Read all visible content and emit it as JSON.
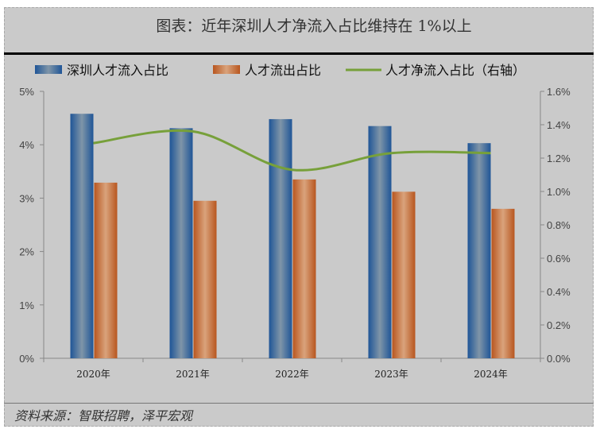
{
  "title": "图表：近年深圳人才净流入占比维持在 1%以上",
  "source": "资料来源：智联招聘，泽平宏观",
  "chart_data": {
    "type": "bar",
    "categories": [
      "2020年",
      "2021年",
      "2022年",
      "2023年",
      "2024年"
    ],
    "series": [
      {
        "name": "深圳人才流入占比",
        "type": "bar",
        "axis": "left",
        "color": "#2e64a0",
        "values": [
          4.58,
          4.31,
          4.48,
          4.35,
          4.03
        ]
      },
      {
        "name": "人才流出占比",
        "type": "bar",
        "axis": "left",
        "color": "#c8662a",
        "values": [
          3.29,
          2.95,
          3.35,
          3.12,
          2.8
        ]
      },
      {
        "name": "人才净流入占比（右轴）",
        "type": "line",
        "axis": "right",
        "color": "#77a03a",
        "values": [
          1.29,
          1.36,
          1.13,
          1.23,
          1.23
        ]
      }
    ],
    "left_axis": {
      "ylim": [
        0,
        5
      ],
      "ticks": [
        "0%",
        "1%",
        "2%",
        "3%",
        "4%",
        "5%"
      ]
    },
    "right_axis": {
      "ylim": [
        0,
        1.6
      ],
      "ticks": [
        "0.0%",
        "0.2%",
        "0.4%",
        "0.6%",
        "0.8%",
        "1.0%",
        "1.2%",
        "1.4%",
        "1.6%"
      ]
    },
    "legend": "top",
    "grid": false
  }
}
